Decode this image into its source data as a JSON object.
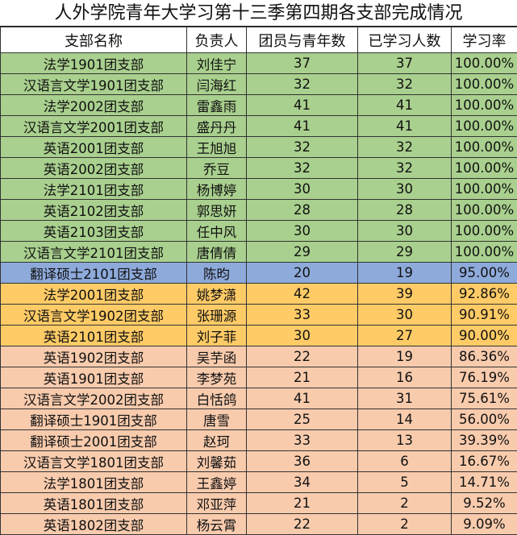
{
  "title": "人外学院青年大学习第十三季第四期各支部完成情况",
  "colors": {
    "complete": "#a9d08e",
    "high": "#8eaadb",
    "mid": "#ffcb66",
    "low": "#f8cbad"
  },
  "headers": [
    "支部名称",
    "负责人",
    "团员与青年数",
    "已学习人数",
    "学习率"
  ],
  "rows": [
    {
      "branch": "法学1901团支部",
      "leader": "刘佳宁",
      "members": "37",
      "studied": "37",
      "rate": "100.00%",
      "tier": "complete"
    },
    {
      "branch": "汉语言文学1901团支部",
      "leader": "闫海红",
      "members": "32",
      "studied": "32",
      "rate": "100.00%",
      "tier": "complete"
    },
    {
      "branch": "法学2002团支部",
      "leader": "雷鑫雨",
      "members": "41",
      "studied": "41",
      "rate": "100.00%",
      "tier": "complete"
    },
    {
      "branch": "汉语言文学2001团支部",
      "leader": "盛丹丹",
      "members": "41",
      "studied": "41",
      "rate": "100.00%",
      "tier": "complete"
    },
    {
      "branch": "英语2001团支部",
      "leader": "王旭旭",
      "members": "32",
      "studied": "32",
      "rate": "100.00%",
      "tier": "complete"
    },
    {
      "branch": "英语2002团支部",
      "leader": "乔豆",
      "members": "32",
      "studied": "32",
      "rate": "100.00%",
      "tier": "complete"
    },
    {
      "branch": "法学2101团支部",
      "leader": "杨博婷",
      "members": "30",
      "studied": "30",
      "rate": "100.00%",
      "tier": "complete"
    },
    {
      "branch": "英语2102团支部",
      "leader": "郭思妍",
      "members": "28",
      "studied": "28",
      "rate": "100.00%",
      "tier": "complete"
    },
    {
      "branch": "英语2103团支部",
      "leader": "任中风",
      "members": "30",
      "studied": "30",
      "rate": "100.00%",
      "tier": "complete"
    },
    {
      "branch": "汉语言文学2101团支部",
      "leader": "唐倩倩",
      "members": "29",
      "studied": "29",
      "rate": "100.00%",
      "tier": "complete"
    },
    {
      "branch": "翻译硕士2101团支部",
      "leader": "陈昀",
      "members": "20",
      "studied": "19",
      "rate": "95.00%",
      "tier": "high"
    },
    {
      "branch": "法学2001团支部",
      "leader": "姚梦潇",
      "members": "42",
      "studied": "39",
      "rate": "92.86%",
      "tier": "mid"
    },
    {
      "branch": "汉语言文学1902团支部",
      "leader": "张珊源",
      "members": "33",
      "studied": "30",
      "rate": "90.91%",
      "tier": "mid"
    },
    {
      "branch": "英语2101团支部",
      "leader": "刘子菲",
      "members": "30",
      "studied": "27",
      "rate": "90.00%",
      "tier": "mid"
    },
    {
      "branch": "英语1902团支部",
      "leader": "吴芋函",
      "members": "22",
      "studied": "19",
      "rate": "86.36%",
      "tier": "low"
    },
    {
      "branch": "英语1901团支部",
      "leader": "李梦苑",
      "members": "21",
      "studied": "16",
      "rate": "76.19%",
      "tier": "low"
    },
    {
      "branch": "汉语言文学2002团支部",
      "leader": "白恬鸽",
      "members": "41",
      "studied": "31",
      "rate": "75.61%",
      "tier": "low"
    },
    {
      "branch": "翻译硕士1901团支部",
      "leader": "唐雪",
      "members": "25",
      "studied": "14",
      "rate": "56.00%",
      "tier": "low"
    },
    {
      "branch": "翻译硕士2001团支部",
      "leader": "赵珂",
      "members": "33",
      "studied": "13",
      "rate": "39.39%",
      "tier": "low"
    },
    {
      "branch": "汉语言文学1801团支部",
      "leader": "刘馨茹",
      "members": "36",
      "studied": "6",
      "rate": "16.67%",
      "tier": "low"
    },
    {
      "branch": "法学1801团支部",
      "leader": "王鑫婷",
      "members": "34",
      "studied": "5",
      "rate": "14.71%",
      "tier": "low"
    },
    {
      "branch": "英语1801团支部",
      "leader": "邓亚萍",
      "members": "21",
      "studied": "2",
      "rate": "9.52%",
      "tier": "low"
    },
    {
      "branch": "英语1802团支部",
      "leader": "杨云霄",
      "members": "22",
      "studied": "2",
      "rate": "9.09%",
      "tier": "low"
    }
  ]
}
